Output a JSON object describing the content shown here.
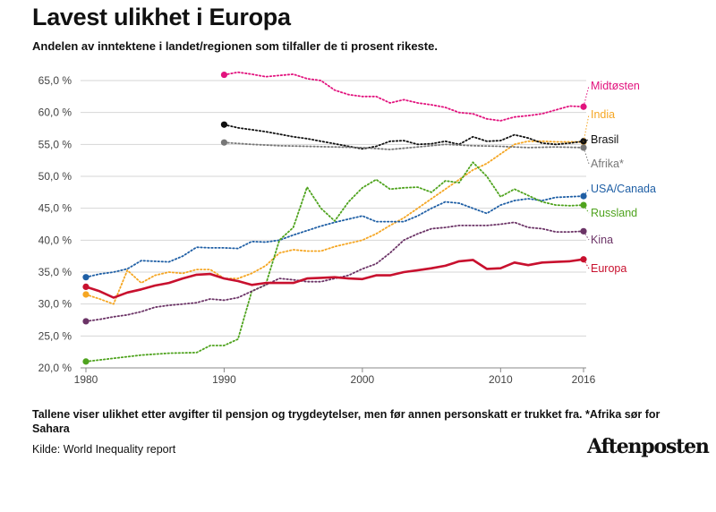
{
  "title": "Lavest ulikhet i Europa",
  "subtitle": "Andelen av inntektene i landet/regionen som tilfaller de ti prosent rikeste.",
  "note": "Tallene viser ulikhet etter avgifter til pensjon og trygdeytelser, men før annen personskatt er trukket fra. *Afrika sør for Sahara",
  "source": "Kilde: World Inequality report",
  "logo": "Aftenposten",
  "chart_data": {
    "type": "line",
    "title": "Lavest ulikhet i Europa",
    "xlabel": "",
    "ylabel": "",
    "xlim": [
      1980,
      2016
    ],
    "ylim": [
      20,
      65
    ],
    "xticks": [
      1980,
      1990,
      2000,
      2010,
      2016
    ],
    "yticks": [
      20,
      25,
      30,
      35,
      40,
      45,
      50,
      55,
      60,
      65
    ],
    "ytick_labels": [
      "20,0 %",
      "25,0 %",
      "30,0 %",
      "35,0 %",
      "40,0 %",
      "45,0 %",
      "50,0 %",
      "55,0 %",
      "60,0 %",
      "65,0 %"
    ],
    "grid": true,
    "series": [
      {
        "name": "Midtøsten",
        "color": "#e2137e",
        "style": "dotted",
        "x": [
          1990,
          1991,
          1992,
          1993,
          1994,
          1995,
          1996,
          1997,
          1998,
          1999,
          2000,
          2001,
          2002,
          2003,
          2004,
          2005,
          2006,
          2007,
          2008,
          2009,
          2010,
          2011,
          2012,
          2013,
          2014,
          2015,
          2016
        ],
        "y": [
          65.9,
          66.3,
          66.0,
          65.6,
          65.8,
          66.0,
          65.3,
          65.0,
          63.5,
          62.8,
          62.5,
          62.5,
          61.5,
          62.0,
          61.5,
          61.2,
          60.8,
          60.0,
          59.8,
          59.0,
          58.7,
          59.3,
          59.5,
          59.8,
          60.4,
          61.0,
          60.9
        ]
      },
      {
        "name": "India",
        "color": "#f5a623",
        "style": "dotted",
        "x": [
          1980,
          1981,
          1982,
          1983,
          1984,
          1985,
          1986,
          1987,
          1988,
          1989,
          1990,
          1991,
          1992,
          1993,
          1994,
          1995,
          1996,
          1997,
          1998,
          1999,
          2000,
          2001,
          2002,
          2003,
          2004,
          2005,
          2006,
          2007,
          2008,
          2009,
          2010,
          2011,
          2012,
          2013,
          2014,
          2015,
          2016
        ],
        "y": [
          31.5,
          30.8,
          30.0,
          35.3,
          33.3,
          34.5,
          35.0,
          34.8,
          35.4,
          35.4,
          34.0,
          34.0,
          34.8,
          36.0,
          38.0,
          38.5,
          38.3,
          38.3,
          39.0,
          39.5,
          40.0,
          41.0,
          42.3,
          43.5,
          45.0,
          46.5,
          48.0,
          49.5,
          51.0,
          52.0,
          53.5,
          55.0,
          55.5,
          55.5,
          55.4,
          55.4,
          55.4
        ]
      },
      {
        "name": "Brasil",
        "color": "#111111",
        "style": "dotted",
        "x": [
          1990,
          1991,
          1992,
          1993,
          1994,
          1995,
          1996,
          1997,
          1998,
          1999,
          2000,
          2001,
          2002,
          2003,
          2004,
          2005,
          2006,
          2007,
          2008,
          2009,
          2010,
          2011,
          2012,
          2013,
          2014,
          2015,
          2016
        ],
        "y": [
          58.1,
          57.6,
          57.3,
          57.0,
          56.6,
          56.2,
          55.9,
          55.5,
          55.1,
          54.7,
          54.3,
          54.7,
          55.5,
          55.6,
          55.0,
          55.1,
          55.5,
          55.0,
          56.2,
          55.5,
          55.6,
          56.5,
          56.0,
          55.2,
          55.0,
          55.2,
          55.5
        ]
      },
      {
        "name": "Afrika*",
        "color": "#777777",
        "style": "dotted",
        "x": [
          1990,
          1992,
          1994,
          1996,
          1998,
          2000,
          2002,
          2004,
          2006,
          2008,
          2010,
          2012,
          2014,
          2016
        ],
        "y": [
          55.3,
          55.0,
          54.8,
          54.7,
          54.6,
          54.5,
          54.2,
          54.6,
          55.0,
          54.8,
          54.7,
          54.5,
          54.6,
          54.5
        ]
      },
      {
        "name": "USA/Canada",
        "color": "#1f5fa5",
        "style": "dotted",
        "x": [
          1980,
          1981,
          1982,
          1983,
          1984,
          1985,
          1986,
          1987,
          1988,
          1989,
          1990,
          1991,
          1992,
          1993,
          1994,
          1995,
          1996,
          1997,
          1998,
          1999,
          2000,
          2001,
          2002,
          2003,
          2004,
          2005,
          2006,
          2007,
          2008,
          2009,
          2010,
          2011,
          2012,
          2013,
          2014,
          2015,
          2016
        ],
        "y": [
          34.2,
          34.7,
          35.0,
          35.5,
          36.8,
          36.7,
          36.6,
          37.5,
          38.9,
          38.8,
          38.8,
          38.7,
          39.8,
          39.7,
          40.0,
          40.8,
          41.5,
          42.2,
          42.8,
          43.3,
          43.8,
          42.9,
          42.9,
          42.9,
          43.8,
          45.0,
          46.0,
          45.8,
          45.0,
          44.2,
          45.5,
          46.2,
          46.5,
          46.2,
          46.7,
          46.8,
          46.9
        ]
      },
      {
        "name": "Russland",
        "color": "#4fa31e",
        "style": "dotted",
        "x": [
          1980,
          1982,
          1984,
          1986,
          1988,
          1989,
          1990,
          1991,
          1992,
          1993,
          1994,
          1995,
          1996,
          1997,
          1998,
          1999,
          2000,
          2001,
          2002,
          2003,
          2004,
          2005,
          2006,
          2007,
          2008,
          2009,
          2010,
          2011,
          2012,
          2013,
          2014,
          2015,
          2016
        ],
        "y": [
          21.0,
          21.5,
          22.0,
          22.3,
          22.4,
          23.5,
          23.5,
          24.5,
          32.0,
          33.0,
          40.0,
          42.0,
          48.3,
          45.0,
          43.0,
          46.0,
          48.2,
          49.5,
          48.0,
          48.2,
          48.3,
          47.5,
          49.3,
          49.0,
          52.2,
          50.0,
          46.8,
          48.0,
          47.0,
          46.0,
          45.5,
          45.4,
          45.5
        ]
      },
      {
        "name": "Kina",
        "color": "#6b3366",
        "style": "dotted",
        "x": [
          1980,
          1981,
          1982,
          1983,
          1984,
          1985,
          1986,
          1987,
          1988,
          1989,
          1990,
          1991,
          1992,
          1993,
          1994,
          1995,
          1996,
          1997,
          1998,
          1999,
          2000,
          2001,
          2002,
          2003,
          2004,
          2005,
          2006,
          2007,
          2008,
          2009,
          2010,
          2011,
          2012,
          2013,
          2014,
          2015,
          2016
        ],
        "y": [
          27.3,
          27.6,
          28.0,
          28.3,
          28.8,
          29.5,
          29.8,
          30.0,
          30.2,
          30.8,
          30.6,
          31.0,
          32.0,
          33.0,
          34.0,
          33.8,
          33.5,
          33.5,
          34.0,
          34.5,
          35.5,
          36.3,
          38.0,
          40.0,
          41.0,
          41.8,
          42.0,
          42.3,
          42.3,
          42.3,
          42.5,
          42.8,
          42.0,
          41.8,
          41.3,
          41.3,
          41.4
        ]
      },
      {
        "name": "Europa",
        "color": "#c8102e",
        "style": "solid",
        "x": [
          1980,
          1981,
          1982,
          1983,
          1984,
          1985,
          1986,
          1987,
          1988,
          1989,
          1990,
          1991,
          1992,
          1993,
          1994,
          1995,
          1996,
          1997,
          1998,
          1999,
          2000,
          2001,
          2002,
          2003,
          2004,
          2005,
          2006,
          2007,
          2008,
          2009,
          2010,
          2011,
          2012,
          2013,
          2014,
          2015,
          2016
        ],
        "y": [
          32.7,
          32.0,
          31.0,
          31.8,
          32.3,
          32.9,
          33.3,
          34.0,
          34.6,
          34.7,
          34.0,
          33.6,
          33.0,
          33.3,
          33.3,
          33.3,
          34.0,
          34.1,
          34.2,
          34.0,
          33.9,
          34.5,
          34.5,
          35.0,
          35.3,
          35.6,
          36.0,
          36.7,
          36.9,
          35.5,
          35.6,
          36.5,
          36.1,
          36.5,
          36.6,
          36.7,
          37.0
        ]
      }
    ]
  }
}
